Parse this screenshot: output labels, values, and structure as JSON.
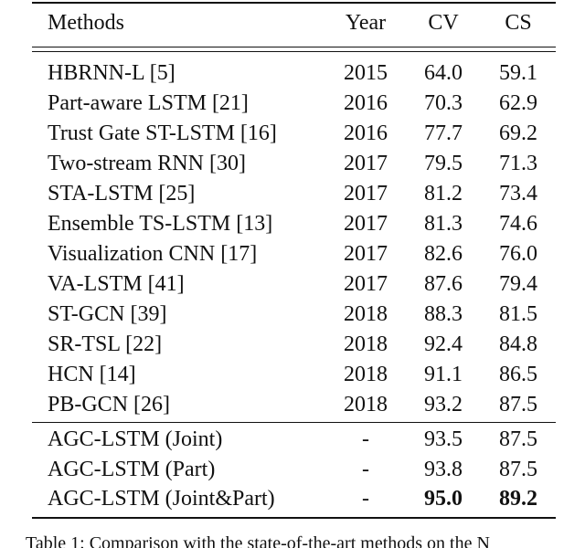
{
  "table": {
    "header": [
      "Methods",
      "Year",
      "CV",
      "CS"
    ],
    "rows": [
      [
        "HBRNN-L [5]",
        "2015",
        "64.0",
        "59.1"
      ],
      [
        "Part-aware LSTM [21]",
        "2016",
        "70.3",
        "62.9"
      ],
      [
        "Trust Gate ST-LSTM [16]",
        "2016",
        "77.7",
        "69.2"
      ],
      [
        "Two-stream RNN [30]",
        "2017",
        "79.5",
        "71.3"
      ],
      [
        "STA-LSTM [25]",
        "2017",
        "81.2",
        "73.4"
      ],
      [
        "Ensemble TS-LSTM [13]",
        "2017",
        "81.3",
        "74.6"
      ],
      [
        "Visualization CNN [17]",
        "2017",
        "82.6",
        "76.0"
      ],
      [
        "VA-LSTM [41]",
        "2017",
        "87.6",
        "79.4"
      ],
      [
        "ST-GCN [39]",
        "2018",
        "88.3",
        "81.5"
      ],
      [
        "SR-TSL [22]",
        "2018",
        "92.4",
        "84.8"
      ],
      [
        "HCN [14]",
        "2018",
        "91.1",
        "86.5"
      ],
      [
        "PB-GCN [26]",
        "2018",
        "93.2",
        "87.5"
      ],
      [
        "AGC-LSTM (Joint)",
        "-",
        "93.5",
        "87.5"
      ],
      [
        "AGC-LSTM (Part)",
        "-",
        "93.8",
        "87.5"
      ],
      [
        "AGC-LSTM (Joint&Part)",
        "-",
        "95.0",
        "89.2"
      ]
    ]
  },
  "caption": "Table 1: Comparison with the state-of-the-art methods on the N"
}
